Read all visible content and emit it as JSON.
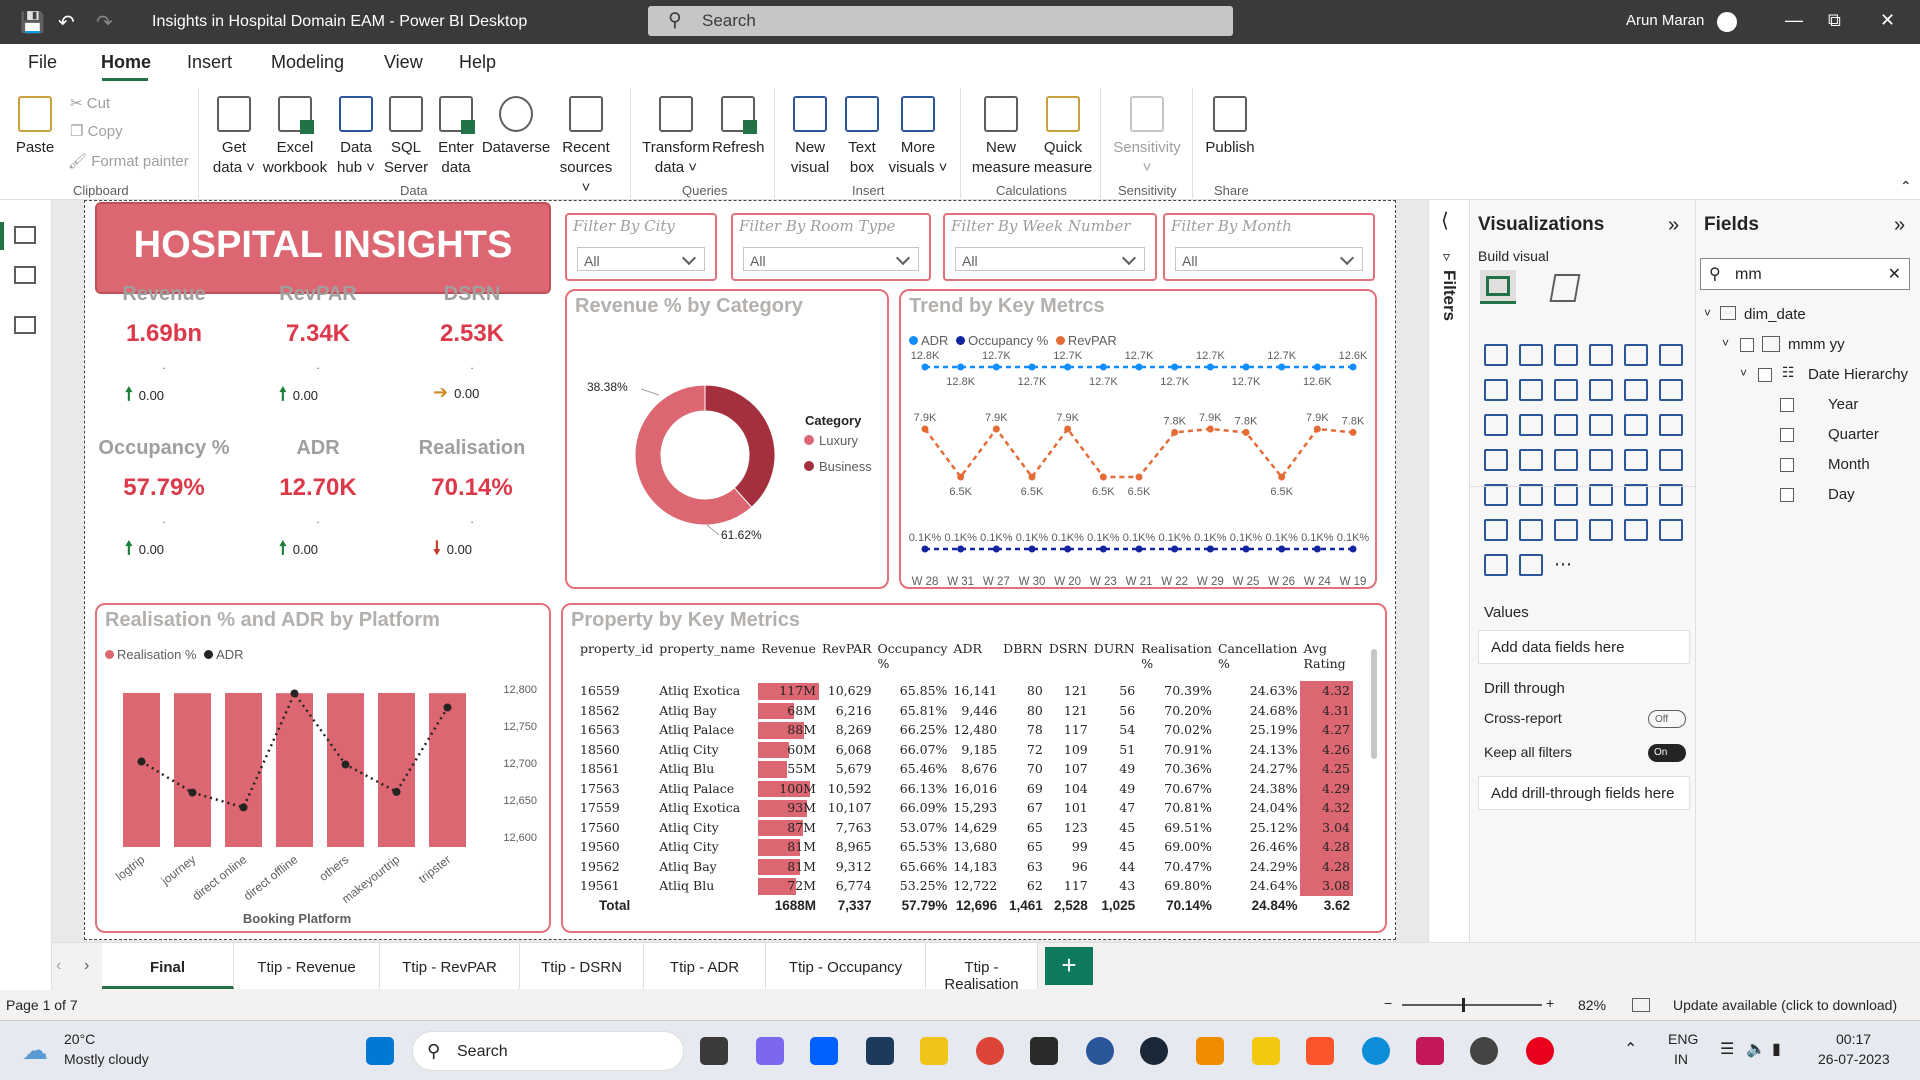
{
  "window": {
    "title": "Insights in Hospital Domain EAM - Power BI Desktop",
    "search_placeholder": "Search",
    "user": "Arun Maran"
  },
  "menu": [
    "File",
    "Home",
    "Insert",
    "Modeling",
    "View",
    "Help"
  ],
  "ribbon": {
    "clipboard": {
      "paste": "Paste",
      "cut": "Cut",
      "copy": "Copy",
      "format_painter": "Format painter",
      "group": "Clipboard"
    },
    "data": {
      "get_data": [
        "Get",
        "data"
      ],
      "excel": [
        "Excel",
        "workbook"
      ],
      "data_hub": [
        "Data",
        "hub"
      ],
      "sql": [
        "SQL",
        "Server"
      ],
      "enter": [
        "Enter",
        "data"
      ],
      "dataverse": "Dataverse",
      "recent": [
        "Recent",
        "sources"
      ],
      "group": "Data"
    },
    "queries": {
      "transform": [
        "Transform",
        "data"
      ],
      "refresh": "Refresh",
      "group": "Queries"
    },
    "insert": {
      "new_visual": [
        "New",
        "visual"
      ],
      "text_box": [
        "Text",
        "box"
      ],
      "more": [
        "More",
        "visuals"
      ],
      "group": "Insert"
    },
    "calculations": {
      "new_measure": [
        "New",
        "measure"
      ],
      "quick_measure": [
        "Quick",
        "measure"
      ],
      "group": "Calculations"
    },
    "sensitivity": {
      "label": "Sensitivity",
      "group": "Sensitivity"
    },
    "share": {
      "publish": "Publish",
      "group": "Share"
    }
  },
  "report": {
    "banner": "HOSPITAL INSIGHTS",
    "slicers": [
      {
        "label": "Filter By City",
        "value": "All"
      },
      {
        "label": "Filter By Room Type",
        "value": "All"
      },
      {
        "label": "Filter By Week Number",
        "value": "All"
      },
      {
        "label": "Filter By Month",
        "value": "All"
      }
    ],
    "kpis": [
      {
        "title": "Revenue",
        "value": "1.69bn",
        "dot": ".",
        "change": "0.00",
        "trend": "up"
      },
      {
        "title": "RevPAR",
        "value": "7.34K",
        "dot": ".",
        "change": "0.00",
        "trend": "up"
      },
      {
        "title": "DSRN",
        "value": "2.53K",
        "dot": ".",
        "change": "0.00",
        "trend": "flat"
      },
      {
        "title": "Occupancy %",
        "value": "57.79%",
        "dot": ".",
        "change": "0.00",
        "trend": "up"
      },
      {
        "title": "ADR",
        "value": "12.70K",
        "dot": ".",
        "change": "0.00",
        "trend": "up"
      },
      {
        "title": "Realisation",
        "value": "70.14%",
        "dot": ".",
        "change": "0.00",
        "trend": "down"
      }
    ],
    "colors": {
      "up": "#1a7f37",
      "flat": "#d08a20",
      "down": "#c0392b",
      "accent": "#dc6672",
      "dark": "#a3303c"
    }
  },
  "chart_data": [
    {
      "type": "pie",
      "title": "Revenue % by Category",
      "legend_title": "Category",
      "labels": [
        "Luxury",
        "Business"
      ],
      "values": [
        61.62,
        38.38
      ],
      "value_labels": [
        "61.62%",
        "38.38%"
      ],
      "colors": [
        "#dc6672",
        "#a3303c"
      ],
      "donut": true
    },
    {
      "type": "line",
      "title": "Trend by Key Metrcs",
      "categories": [
        "W 28",
        "W 31",
        "W 27",
        "W 30",
        "W 20",
        "W 23",
        "W 21",
        "W 22",
        "W 29",
        "W 25",
        "W 26",
        "W 24",
        "W 19"
      ],
      "series": [
        {
          "name": "ADR",
          "color": "#118dff",
          "labels": [
            "12.8K",
            "12.8K",
            "12.7K",
            "12.7K",
            "12.7K",
            "12.7K",
            "12.7K",
            "12.7K",
            "12.7K",
            "12.7K",
            "12.7K",
            "12.6K",
            "12.6K"
          ]
        },
        {
          "name": "Occupancy %",
          "color": "#12239e",
          "labels": [
            "0.1K%",
            "0.1K%",
            "0.1K%",
            "0.1K%",
            "0.1K%",
            "0.1K%",
            "0.1K%",
            "0.1K%",
            "0.1K%",
            "0.1K%",
            "0.1K%",
            "0.1K%",
            "0.1K%"
          ]
        },
        {
          "name": "RevPAR",
          "color": "#e66c37",
          "values": [
            7.9,
            6.5,
            7.9,
            6.5,
            7.9,
            6.5,
            6.5,
            7.8,
            7.9,
            7.8,
            6.5,
            7.9,
            7.8
          ],
          "labels": [
            "7.9K",
            "6.5K",
            "7.9K",
            "6.5K",
            "7.9K",
            "6.5K",
            "6.5K",
            "7.8K",
            "7.9K",
            "7.8K",
            "6.5K",
            "7.9K",
            "7.8K"
          ]
        }
      ],
      "legend_position": "top-left"
    },
    {
      "type": "bar",
      "title": "Realisation % and ADR by Platform",
      "xlabel": "Booking Platform",
      "categories": [
        "logtrip",
        "journey",
        "direct online",
        "direct offline",
        "others",
        "makeyourtrip",
        "tripster"
      ],
      "series": [
        {
          "name": "Realisation %",
          "type": "bar",
          "color": "#dc6672",
          "values": [
            70.2,
            70.1,
            70.2,
            70.1,
            70.1,
            70.2,
            70.1
          ]
        },
        {
          "name": "ADR",
          "type": "line",
          "color": "#252423",
          "values": [
            12702,
            12660,
            12640,
            12794,
            12698,
            12661,
            12775
          ]
        }
      ],
      "y2_ticks": [
        "12,800",
        "12,750",
        "12,700",
        "12,650",
        "12,600"
      ],
      "y2lim": [
        12600,
        12800
      ]
    },
    {
      "type": "table",
      "title": "Property by Key Metrics",
      "columns": [
        "property_id",
        "property_name",
        "Revenue",
        "RevPAR",
        "Occupancy %",
        "ADR",
        "DBRN",
        "DSRN",
        "DURN",
        "Realisation %",
        "Cancellation %",
        "Avg Rating"
      ],
      "rows": [
        [
          "16559",
          "Atliq Exotica",
          "117M",
          "10,629",
          "65.85%",
          "16,141",
          "80",
          "121",
          "56",
          "70.39%",
          "24.63%",
          "4.32"
        ],
        [
          "18562",
          "Atliq Bay",
          "68M",
          "6,216",
          "65.81%",
          "9,446",
          "80",
          "121",
          "56",
          "70.20%",
          "24.68%",
          "4.31"
        ],
        [
          "16563",
          "Atliq Palace",
          "88M",
          "8,269",
          "66.25%",
          "12,480",
          "78",
          "117",
          "54",
          "70.02%",
          "25.19%",
          "4.27"
        ],
        [
          "18560",
          "Atliq City",
          "60M",
          "6,068",
          "66.07%",
          "9,185",
          "72",
          "109",
          "51",
          "70.91%",
          "24.13%",
          "4.26"
        ],
        [
          "18561",
          "Atliq Blu",
          "55M",
          "5,679",
          "65.46%",
          "8,676",
          "70",
          "107",
          "49",
          "70.36%",
          "24.27%",
          "4.25"
        ],
        [
          "17563",
          "Atliq Palace",
          "100M",
          "10,592",
          "66.13%",
          "16,016",
          "69",
          "104",
          "49",
          "70.67%",
          "24.38%",
          "4.29"
        ],
        [
          "17559",
          "Atliq Exotica",
          "93M",
          "10,107",
          "66.09%",
          "15,293",
          "67",
          "101",
          "47",
          "70.81%",
          "24.04%",
          "4.32"
        ],
        [
          "17560",
          "Atliq City",
          "87M",
          "7,763",
          "53.07%",
          "14,629",
          "65",
          "123",
          "45",
          "69.51%",
          "25.12%",
          "3.04"
        ],
        [
          "19560",
          "Atliq City",
          "81M",
          "8,965",
          "65.53%",
          "13,680",
          "65",
          "99",
          "45",
          "69.00%",
          "26.46%",
          "4.28"
        ],
        [
          "19562",
          "Atliq Bay",
          "81M",
          "9,312",
          "65.66%",
          "14,183",
          "63",
          "96",
          "44",
          "70.47%",
          "24.29%",
          "4.28"
        ],
        [
          "19561",
          "Atliq Blu",
          "72M",
          "6,774",
          "53.25%",
          "12,722",
          "62",
          "117",
          "43",
          "69.80%",
          "24.64%",
          "3.08"
        ]
      ],
      "revenue_m": [
        117,
        68,
        88,
        60,
        55,
        100,
        93,
        87,
        81,
        81,
        72
      ],
      "total": [
        "Total",
        "",
        "1688M",
        "7,337",
        "57.79%",
        "12,696",
        "1,461",
        "2,528",
        "1,025",
        "70.14%",
        "24.84%",
        "3.62"
      ]
    }
  ],
  "tabs": [
    "Final",
    "Ttip - Revenue",
    "Ttip - RevPAR",
    "Ttip - DSRN",
    "Ttip - ADR",
    "Ttip - Occupancy",
    "Ttip - Realisation"
  ],
  "panes": {
    "filters": "Filters",
    "visualizations": {
      "title": "Visualizations",
      "build": "Build visual",
      "values": "Values",
      "values_well": "Add data fields here",
      "drill": "Drill through",
      "cross": "Cross-report",
      "cross_state": "Off",
      "keep": "Keep all filters",
      "keep_state": "On",
      "drill_well": "Add drill-through fields here"
    },
    "fields": {
      "title": "Fields",
      "search": "mm",
      "table": "dim_date",
      "field": "mmm yy",
      "hier": "Date Hierarchy",
      "levels": [
        "Year",
        "Quarter",
        "Month",
        "Day"
      ]
    }
  },
  "status": {
    "page": "Page 1 of 7",
    "zoom": "82%",
    "update": "Update available (click to download)"
  },
  "taskbar": {
    "weather_temp": "20°C",
    "weather_desc": "Mostly cloudy",
    "search": "Search",
    "lang": "ENG",
    "region": "IN",
    "time": "00:17",
    "date": "26-07-2023"
  }
}
